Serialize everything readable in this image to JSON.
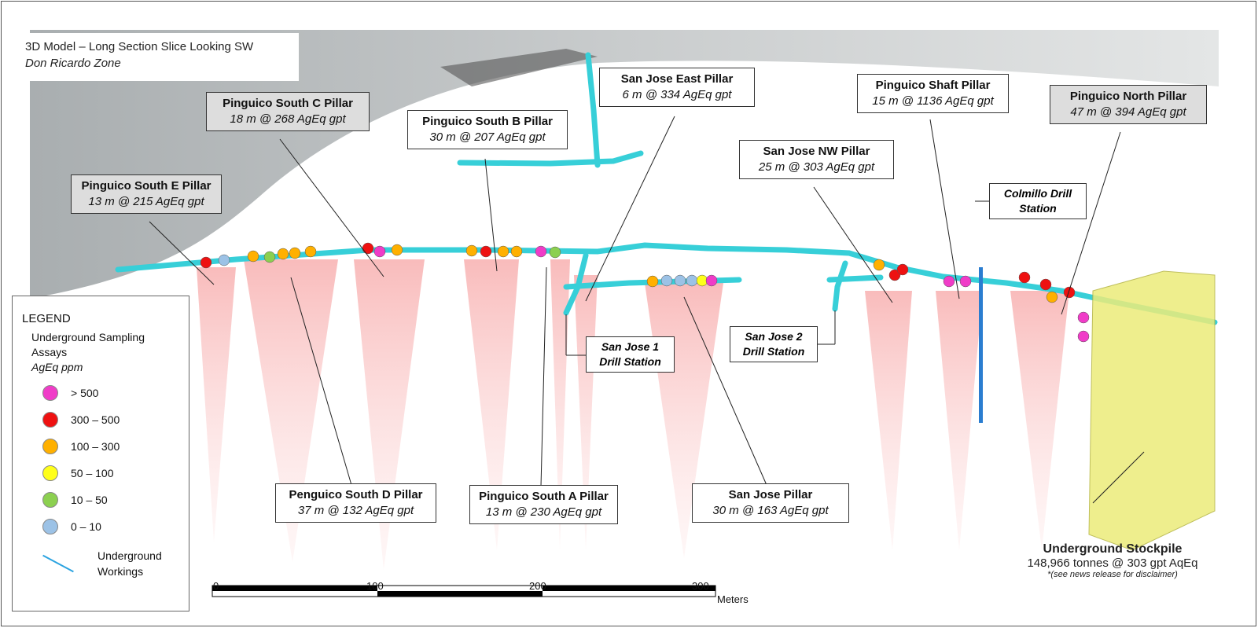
{
  "title": {
    "line1": "3D Model – Long Section Slice Looking SW",
    "line2": "Don Ricardo Zone"
  },
  "pillars": [
    {
      "name": "Pinguico South C Pillar",
      "value": "18 m @ 268 AgEq gpt"
    },
    {
      "name": "Pinguico South B Pillar",
      "value": "30 m @ 207 AgEq gpt"
    },
    {
      "name": "San Jose East Pillar",
      "value": "6 m @ 334 AgEq gpt"
    },
    {
      "name": "Pinguico Shaft Pillar",
      "value": "15 m @ 1136 AgEq gpt"
    },
    {
      "name": "Pinguico North Pillar",
      "value": "47 m @ 394 AgEq gpt"
    },
    {
      "name": "Pinguico South E Pillar",
      "value": "13 m @ 215 AgEq gpt"
    },
    {
      "name": "San Jose NW Pillar",
      "value": "25 m @ 303 AgEq gpt"
    },
    {
      "name": "Penguico South D Pillar",
      "value": "37 m @ 132 AgEq gpt"
    },
    {
      "name": "Pinguico South A Pillar",
      "value": "13 m @ 230 AgEq gpt"
    },
    {
      "name": "San Jose Pillar",
      "value": "30 m @ 163 AgEq gpt"
    }
  ],
  "drill_stations": [
    {
      "line1": "Colmillo Drill",
      "line2": "Station"
    },
    {
      "line1": "San Jose 1",
      "line2": "Drill Station"
    },
    {
      "line1": "San Jose 2",
      "line2": "Drill Station"
    }
  ],
  "legend": {
    "heading": "LEGEND",
    "subtitle1": "Underground Sampling",
    "subtitle2": "Assays",
    "unit": "AgEq ppm",
    "items": [
      {
        "label": "> 500",
        "color": "#f03cc8"
      },
      {
        "label": "300  – 500",
        "color": "#ee1111"
      },
      {
        "label": "100  – 300",
        "color": "#ffb000"
      },
      {
        "label": "50  – 100",
        "color": "#ffff1a"
      },
      {
        "label": "10  – 50",
        "color": "#8cd050"
      },
      {
        "label": "0 – 10",
        "color": "#9cc2e6"
      }
    ],
    "workings_label1": "Underground",
    "workings_label2": "Workings",
    "workings_color": "#2ba3e0"
  },
  "stockpile": {
    "title": "Underground Stockpile",
    "value": "148,966 tonnes @ 303 gpt AqEq",
    "disclaimer": "*(see news release for disclaimer)"
  },
  "scale": {
    "ticks": [
      "0",
      "100",
      "200",
      "300"
    ],
    "unit": "Meters"
  }
}
